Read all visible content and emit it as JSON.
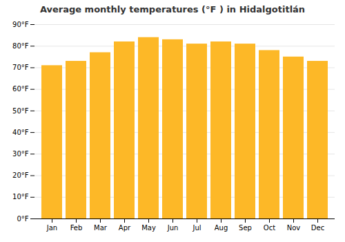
{
  "chart_data": {
    "type": "bar",
    "title": "Average monthly temperatures (°F ) in Hidalgotitlán",
    "categories": [
      "Jan",
      "Feb",
      "Mar",
      "Apr",
      "May",
      "Jun",
      "Jul",
      "Aug",
      "Sep",
      "Oct",
      "Nov",
      "Dec"
    ],
    "values": [
      71,
      73,
      77,
      82,
      84,
      83,
      81,
      82,
      81,
      78,
      75,
      73
    ],
    "color": "#FDB827",
    "ylim": [
      0,
      90
    ],
    "yticks": [
      {
        "value": 0,
        "label": "0°F"
      },
      {
        "value": 10,
        "label": "10°F"
      },
      {
        "value": 20,
        "label": "20°F"
      },
      {
        "value": 30,
        "label": "30°F"
      },
      {
        "value": 40,
        "label": "40°F"
      },
      {
        "value": 50,
        "label": "50°F"
      },
      {
        "value": 60,
        "label": "60°F"
      },
      {
        "value": 70,
        "label": "70°F"
      },
      {
        "value": 80,
        "label": "80°F"
      },
      {
        "value": 90,
        "label": "90°F"
      }
    ],
    "grid": true
  }
}
